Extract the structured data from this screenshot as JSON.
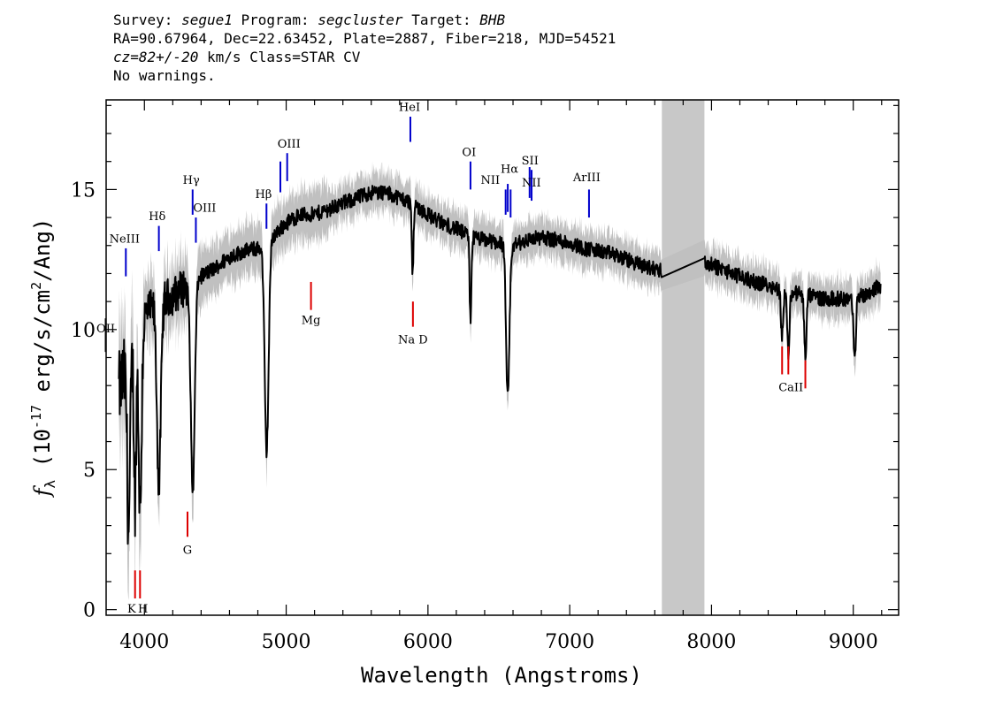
{
  "header": {
    "survey_label": "Survey:",
    "survey": "segue1",
    "program_label": "Program:",
    "program": "segcluster",
    "target_label": "Target:",
    "target": "BHB",
    "line2": "RA=90.67964, Dec=22.63452, Plate=2887, Fiber=218, MJD=54521",
    "cz": "cz=82+/-20",
    "line3_rest": " km/s Class=STAR CV",
    "line4": "No warnings."
  },
  "chart_data": {
    "type": "line",
    "xlabel": "Wavelength (Angstroms)",
    "ylabel": "f_λ (10^-17 erg/s/cm^2/Ang)",
    "xlim": [
      3730,
      9320
    ],
    "ylim": [
      -0.2,
      18.2
    ],
    "x_ticks": [
      4000,
      5000,
      6000,
      7000,
      8000,
      9000
    ],
    "y_ticks": [
      0,
      5,
      10,
      15
    ],
    "grid": false,
    "masked_region": [
      7650,
      7950
    ],
    "colors": {
      "spectrum": "#000000",
      "error_band": "#c0c0c0",
      "emission": "#0000cc",
      "absorption": "#dd0000",
      "mask": "#c8c8c8"
    },
    "continuum": [
      [
        3800,
        7.5
      ],
      [
        3900,
        9.0
      ],
      [
        4000,
        10.5
      ],
      [
        4100,
        11.0
      ],
      [
        4200,
        11.2
      ],
      [
        4300,
        11.6
      ],
      [
        4400,
        11.9
      ],
      [
        4500,
        12.2
      ],
      [
        4600,
        12.6
      ],
      [
        4700,
        12.8
      ],
      [
        4800,
        12.9
      ],
      [
        4900,
        13.3
      ],
      [
        5000,
        13.8
      ],
      [
        5100,
        14.1
      ],
      [
        5200,
        14.1
      ],
      [
        5300,
        14.3
      ],
      [
        5400,
        14.5
      ],
      [
        5500,
        14.7
      ],
      [
        5600,
        14.9
      ],
      [
        5700,
        14.9
      ],
      [
        5800,
        14.7
      ],
      [
        5900,
        14.5
      ],
      [
        6000,
        14.1
      ],
      [
        6100,
        13.8
      ],
      [
        6200,
        13.6
      ],
      [
        6300,
        13.3
      ],
      [
        6400,
        13.2
      ],
      [
        6500,
        13.1
      ],
      [
        6600,
        13.0
      ],
      [
        6700,
        13.2
      ],
      [
        6800,
        13.3
      ],
      [
        6900,
        13.2
      ],
      [
        7000,
        13.1
      ],
      [
        7100,
        12.9
      ],
      [
        7200,
        12.8
      ],
      [
        7300,
        12.7
      ],
      [
        7400,
        12.5
      ],
      [
        7500,
        12.3
      ],
      [
        7650,
        12.1
      ],
      [
        7950,
        12.4
      ],
      [
        8100,
        12.1
      ],
      [
        8200,
        11.9
      ],
      [
        8300,
        11.7
      ],
      [
        8400,
        11.6
      ],
      [
        8500,
        11.4
      ],
      [
        8600,
        11.3
      ],
      [
        8700,
        11.2
      ],
      [
        8800,
        11.1
      ],
      [
        8900,
        11.1
      ],
      [
        9000,
        11.1
      ],
      [
        9100,
        11.3
      ],
      [
        9200,
        11.6
      ]
    ],
    "absorption_features": [
      {
        "name": "H-zeta",
        "center": 3889,
        "depth": 6.0,
        "width": 10
      },
      {
        "name": "CaII K",
        "center": 3934,
        "depth": 5.5,
        "width": 8
      },
      {
        "name": "CaII H / H-eps",
        "center": 3970,
        "depth": 6.5,
        "width": 10
      },
      {
        "name": "H-delta",
        "center": 4102,
        "depth": 6.5,
        "width": 14
      },
      {
        "name": "H-gamma",
        "center": 4341,
        "depth": 7.5,
        "width": 14
      },
      {
        "name": "H-beta",
        "center": 4862,
        "depth": 7.5,
        "width": 14
      },
      {
        "name": "Na D",
        "center": 5892,
        "depth": 2.5,
        "width": 6
      },
      {
        "name": "OI",
        "center": 6300,
        "depth": 3.0,
        "width": 6
      },
      {
        "name": "H-alpha",
        "center": 6563,
        "depth": 5.5,
        "width": 12
      },
      {
        "name": "CaII 8498",
        "center": 8498,
        "depth": 1.6,
        "width": 8
      },
      {
        "name": "CaII 8542",
        "center": 8542,
        "depth": 2.2,
        "width": 8
      },
      {
        "name": "CaII 8662",
        "center": 8662,
        "depth": 2.2,
        "width": 8
      },
      {
        "name": "9010",
        "center": 9010,
        "depth": 2.3,
        "width": 8
      }
    ],
    "emission_lines": [
      {
        "label": "OII",
        "x": 3727,
        "y1": 10.4,
        "y2": 9.2
      },
      {
        "label": "NeIII",
        "x": 3869,
        "y1": 12.9,
        "y2": 11.9
      },
      {
        "label": "Hδ",
        "x": 4102,
        "y1": 13.7,
        "y2": 12.8
      },
      {
        "label": "Hγ",
        "x": 4340,
        "y1": 15.0,
        "y2": 14.1
      },
      {
        "label": "OIII",
        "x": 4363,
        "y1": 14.0,
        "y2": 13.1
      },
      {
        "label": "Hβ",
        "x": 4861,
        "y1": 14.5,
        "y2": 13.6
      },
      {
        "label": "OIII",
        "x": 4959,
        "y1": 16.0,
        "y2": 14.9
      },
      {
        "label": "OIII",
        "x": 5007,
        "y1": 16.3,
        "y2": 15.3
      },
      {
        "label": "HeI",
        "x": 5876,
        "y1": 17.6,
        "y2": 16.7
      },
      {
        "label": "OI",
        "x": 6300,
        "y1": 16.0,
        "y2": 15.0
      },
      {
        "label": "NII",
        "x": 6548,
        "y1": 15.0,
        "y2": 14.1
      },
      {
        "label": "Hα",
        "x": 6563,
        "y1": 15.2,
        "y2": 14.2
      },
      {
        "label": "NII",
        "x": 6583,
        "y1": 15.0,
        "y2": 14.0
      },
      {
        "label": "SII",
        "x": 6717,
        "y1": 15.8,
        "y2": 14.7
      },
      {
        "label": "SII",
        "x": 6731,
        "y1": 15.7,
        "y2": 14.6
      },
      {
        "label": "ArIII",
        "x": 7136,
        "y1": 15.0,
        "y2": 14.0
      }
    ],
    "absorption_lines": [
      {
        "label": "K",
        "x": 3934,
        "y1": 1.4,
        "y2": 0.4
      },
      {
        "label": "H",
        "x": 3969,
        "y1": 1.4,
        "y2": 0.4
      },
      {
        "label": "G",
        "x": 4304,
        "y1": 3.5,
        "y2": 2.6
      },
      {
        "label": "Mg",
        "x": 5175,
        "y1": 11.7,
        "y2": 10.7
      },
      {
        "label": "Na D",
        "x": 5894,
        "y1": 11.0,
        "y2": 10.1
      },
      {
        "label": "CaII",
        "x": 8498,
        "y1": 9.4,
        "y2": 8.4
      },
      {
        "label": "CaII",
        "x": 8542,
        "y1": 9.4,
        "y2": 8.4
      },
      {
        "label": "CaII",
        "x": 8662,
        "y1": 8.9,
        "y2": 7.9
      }
    ],
    "emission_label_text": [
      {
        "text": "OII",
        "x": 3727,
        "y": 9.9
      },
      {
        "text": "NeIII",
        "x": 3860,
        "y": 13.1
      },
      {
        "text": "Hδ",
        "x": 4090,
        "y": 13.9
      },
      {
        "text": "Hγ",
        "x": 4330,
        "y": 15.2
      },
      {
        "text": "OIII",
        "x": 4425,
        "y": 14.2
      },
      {
        "text": "Hβ",
        "x": 4840,
        "y": 14.7
      },
      {
        "text": "OIII",
        "x": 5020,
        "y": 16.5
      },
      {
        "text": "HeI",
        "x": 5870,
        "y": 17.8
      },
      {
        "text": "OI",
        "x": 6290,
        "y": 16.2
      },
      {
        "text": "NII",
        "x": 6440,
        "y": 15.2
      },
      {
        "text": "Hα",
        "x": 6575,
        "y": 15.6
      },
      {
        "text": "SII",
        "x": 6720,
        "y": 15.9
      },
      {
        "text": "NII",
        "x": 6730,
        "y": 15.1
      },
      {
        "text": "ArIII",
        "x": 7120,
        "y": 15.3
      }
    ],
    "absorption_label_text": [
      {
        "text": "K",
        "x": 3910,
        "y": -0.1
      },
      {
        "text": "H",
        "x": 3990,
        "y": -0.1
      },
      {
        "text": "G",
        "x": 4304,
        "y": 2.0
      },
      {
        "text": "Mg",
        "x": 5175,
        "y": 10.2
      },
      {
        "text": "Na D",
        "x": 5894,
        "y": 9.5
      },
      {
        "text": "CaII",
        "x": 8560,
        "y": 7.8
      }
    ]
  }
}
